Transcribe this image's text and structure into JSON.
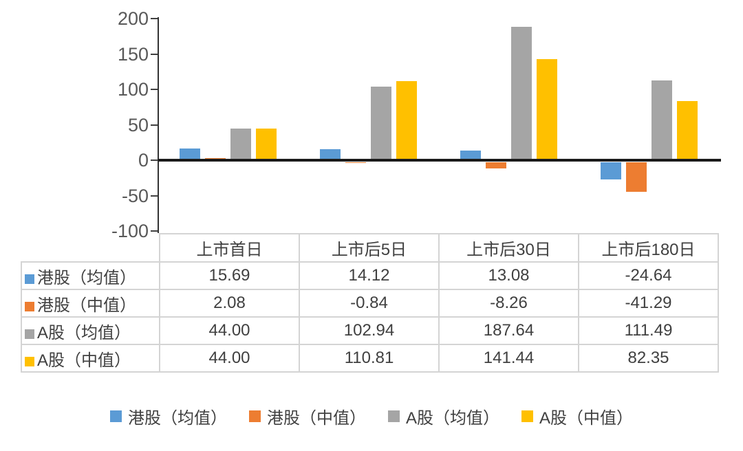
{
  "chart_data": {
    "type": "bar",
    "title": "",
    "xlabel": "",
    "ylabel": "",
    "categories": [
      "上市首日",
      "上市后5日",
      "上市后30日",
      "上市后180日"
    ],
    "series": [
      {
        "name": "港股（均值）",
        "color": "#5B9BD5",
        "values": [
          15.69,
          14.12,
          13.08,
          -24.64
        ]
      },
      {
        "name": "港股（中值）",
        "color": "#ED7D31",
        "values": [
          2.08,
          -0.84,
          -8.26,
          -41.29
        ]
      },
      {
        "name": "A股（均值）",
        "color": "#A5A5A5",
        "values": [
          44.0,
          102.94,
          187.64,
          111.49
        ]
      },
      {
        "name": "A股（中值）",
        "color": "#FFC000",
        "values": [
          44.0,
          110.81,
          141.44,
          82.35
        ]
      }
    ],
    "y_ticks": [
      200,
      150,
      100,
      50,
      0,
      -50,
      -100
    ],
    "ylim": [
      -100,
      200
    ],
    "grid": false,
    "legend_position": "bottom",
    "baseline_color": "#1a1a1a",
    "axis_color": "#595959"
  },
  "data_table": {
    "column_headers": [
      "上市首日",
      "上市后5日",
      "上市后30日",
      "上市后180日"
    ],
    "rows": [
      {
        "label": "港股（均值）",
        "values": [
          "15.69",
          "14.12",
          "13.08",
          "-24.64"
        ]
      },
      {
        "label": "港股（中值）",
        "values": [
          "2.08",
          "-0.84",
          "-8.26",
          "-41.29"
        ]
      },
      {
        "label": "A股（均值）",
        "values": [
          "44.00",
          "102.94",
          "187.64",
          "111.49"
        ]
      },
      {
        "label": "A股（中值）",
        "values": [
          "44.00",
          "110.81",
          "141.44",
          "82.35"
        ]
      }
    ]
  },
  "legend": {
    "items": [
      {
        "label": "港股（均值）",
        "color": "#5B9BD5"
      },
      {
        "label": "港股（中值）",
        "color": "#ED7D31"
      },
      {
        "label": "A股（均值）",
        "color": "#A5A5A5"
      },
      {
        "label": "A股（中值）",
        "color": "#FFC000"
      }
    ]
  }
}
